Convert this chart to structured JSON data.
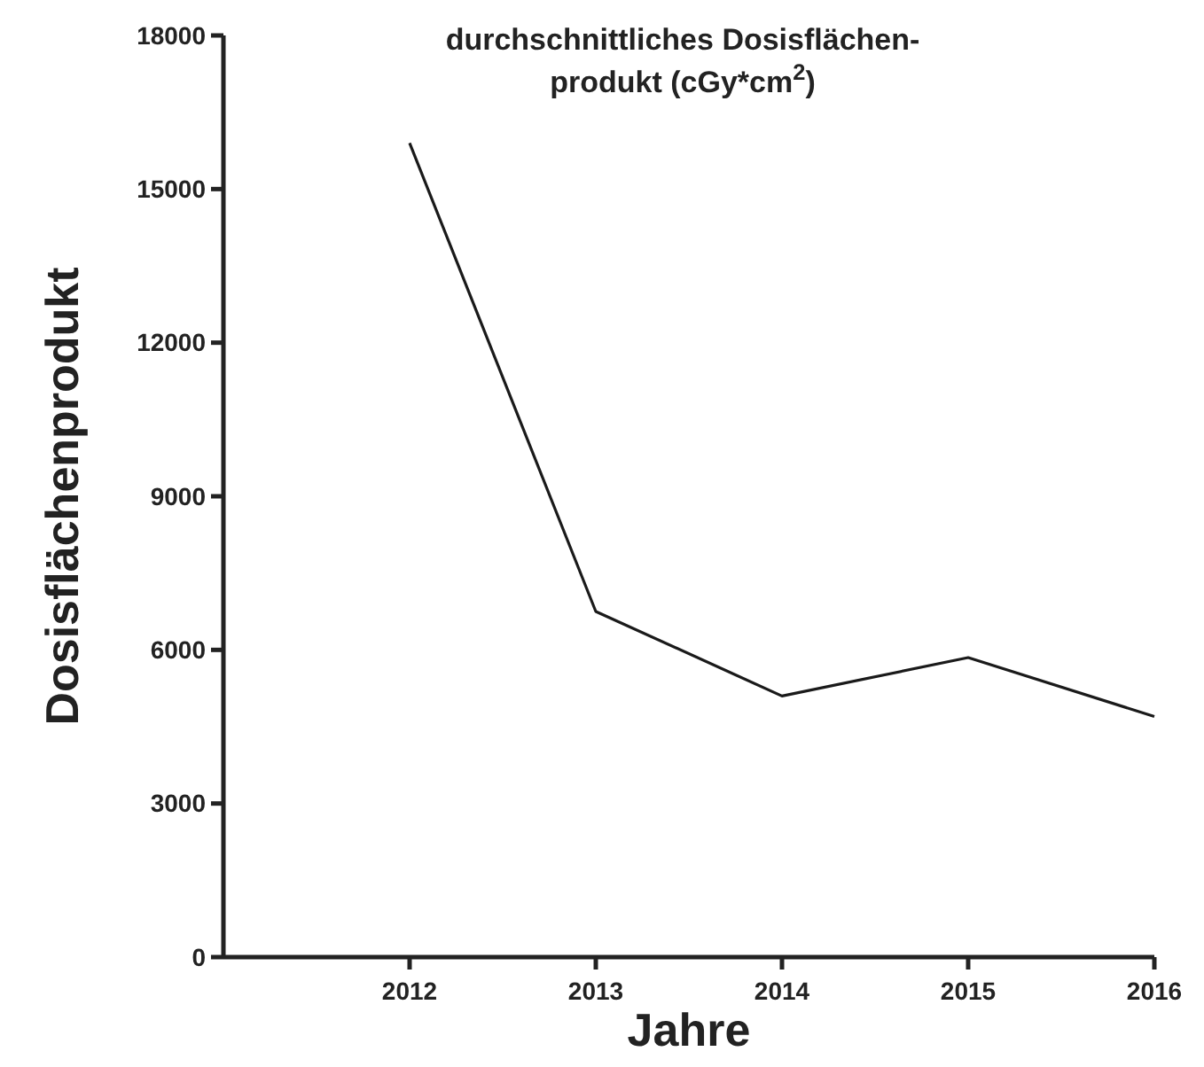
{
  "chart_data": {
    "type": "line",
    "title": "durchschnittliches Dosisflächen-\nprodukt (cGy*cm$^{2}$)",
    "xlabel": "Jahre",
    "ylabel": "Dosisflächenprodukt",
    "x": [
      2012,
      2013,
      2014,
      2015,
      2016
    ],
    "series": [
      {
        "color": "#1a1a1a",
        "values": [
          15900,
          6750,
          5100,
          5850,
          4700
        ]
      }
    ],
    "xlim": [
      2011,
      2016
    ],
    "xticks": [
      2012,
      2013,
      2014,
      2015,
      2016
    ],
    "ylim": [
      0,
      18000
    ],
    "yticks": [
      0,
      3000,
      6000,
      9000,
      12000,
      15000,
      18000
    ],
    "grid": false,
    "marker": "none",
    "line_style": "solid"
  }
}
